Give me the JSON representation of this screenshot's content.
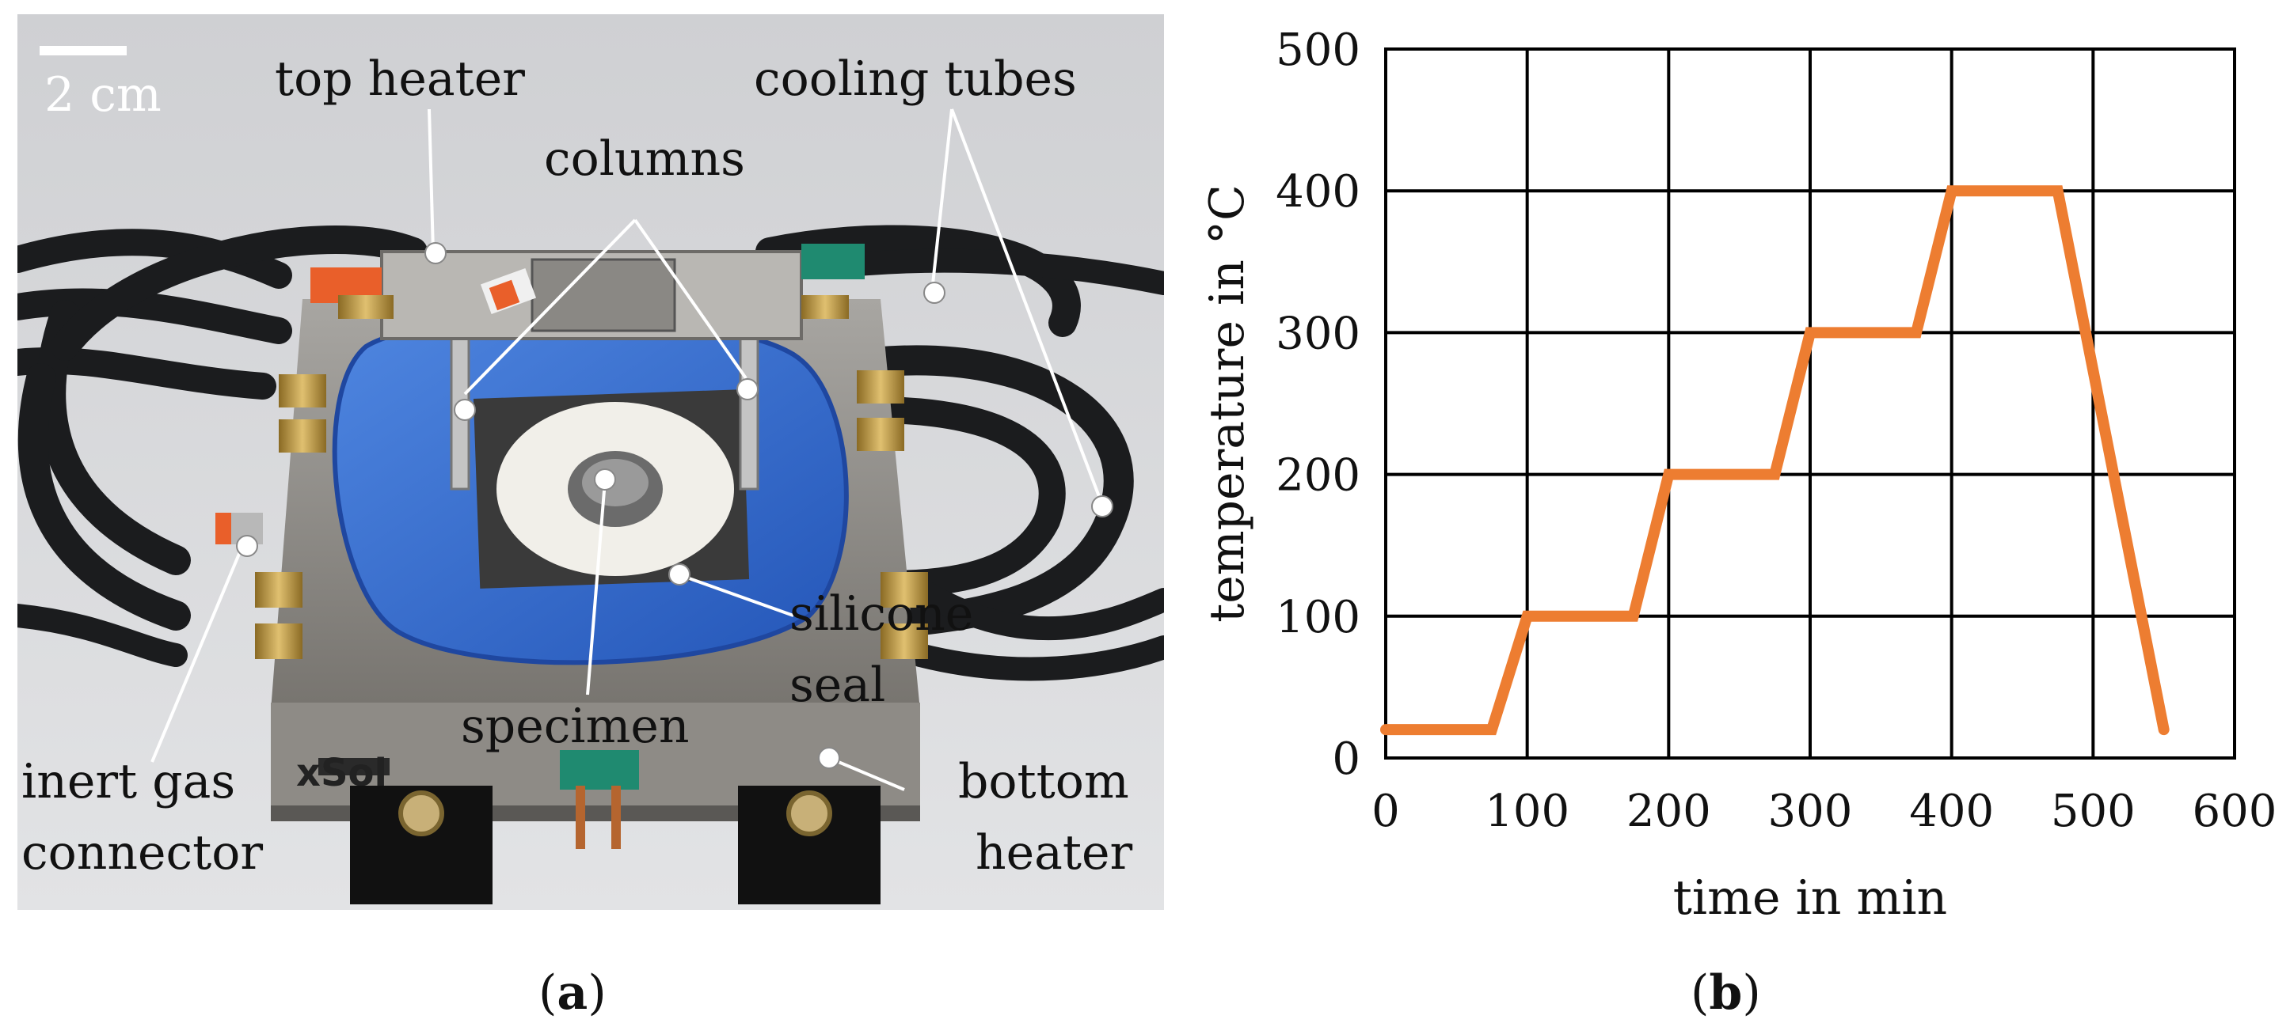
{
  "panel_a": {
    "caption_open": "(",
    "caption_letter": "a",
    "caption_close": ")",
    "scale_bar": "2 cm",
    "labels": {
      "top_heater": "top heater",
      "columns": "columns",
      "cooling_tubes": "cooling tubes",
      "inert_gas_line1": "inert gas",
      "inert_gas_line2": "connector",
      "silicone_line1": "silicone",
      "silicone_line2": "seal",
      "specimen": "specimen",
      "bottom_heater_line1": "bottom",
      "bottom_heater_line2": "heater"
    }
  },
  "panel_b": {
    "caption_open": "(",
    "caption_letter": "b",
    "caption_close": ")"
  },
  "chart_data": {
    "type": "line",
    "xlabel": "time in min",
    "ylabel": "temperature in °C",
    "xlim": [
      0,
      600
    ],
    "ylim": [
      0,
      500
    ],
    "xticks": [
      0,
      100,
      200,
      300,
      400,
      500,
      600
    ],
    "yticks": [
      0,
      100,
      200,
      300,
      400,
      500
    ],
    "grid": true,
    "series": [
      {
        "color": "#ed7d31",
        "x": [
          0,
          75,
          100,
          175,
          200,
          275,
          300,
          375,
          400,
          475,
          550
        ],
        "y": [
          20,
          20,
          100,
          100,
          200,
          200,
          300,
          300,
          400,
          400,
          20
        ]
      }
    ]
  }
}
